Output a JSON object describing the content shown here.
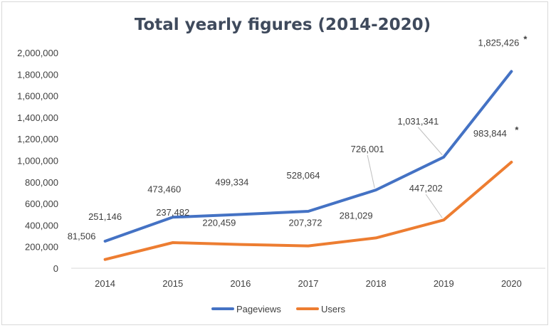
{
  "chart_data": {
    "type": "line",
    "title": "Total yearly figures (2014-2020)",
    "categories": [
      "2014",
      "2015",
      "2016",
      "2017",
      "2018",
      "2019",
      "2020"
    ],
    "ylim": [
      0,
      2000000
    ],
    "yticks": [
      "0",
      "200,000",
      "400,000",
      "600,000",
      "800,000",
      "1,000,000",
      "1,200,000",
      "1,400,000",
      "1,600,000",
      "1,800,000",
      "2,000,000"
    ],
    "grid": false,
    "legend": "bottom",
    "series": [
      {
        "name": "Pageviews",
        "color": "#4472c4",
        "values": [
          251146,
          473460,
          499334,
          528064,
          726001,
          1031341,
          1825426
        ],
        "labels": [
          "251,146",
          "473,460",
          "499,334",
          "528,064",
          "726,001",
          "1,031,341",
          "1,825,426"
        ],
        "last_marker": "*"
      },
      {
        "name": "Users",
        "color": "#ed7d31",
        "values": [
          81506,
          237482,
          220459,
          207372,
          281029,
          447202,
          983844
        ],
        "labels": [
          "81,506",
          "237,482",
          "220,459",
          "207,372",
          "281,029",
          "447,202",
          "983,844"
        ],
        "last_marker": "*"
      }
    ]
  }
}
